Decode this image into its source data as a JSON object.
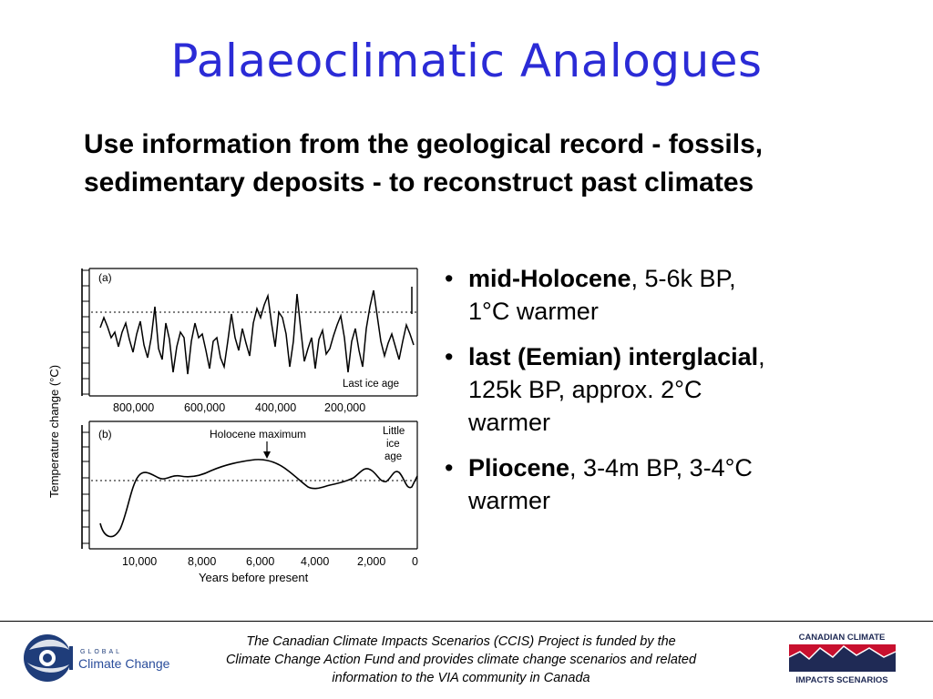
{
  "title": "Palaeoclimatic Analogues",
  "intro": "Use information from the geological record - fossils, sedimentary deposits - to reconstruct past climates",
  "figure": {
    "y_axis_label": "Temperature change (°C)",
    "x_axis_label": "Years before present",
    "panel_a": {
      "tag": "(a)",
      "annotation": "Last ice age",
      "x_ticks": [
        "800,000",
        "600,000",
        "400,000",
        "200,000"
      ]
    },
    "panel_b": {
      "tag": "(b)",
      "annotation_holocene": "Holocene maximum",
      "annotation_little_1": "Little",
      "annotation_little_2": "ice",
      "annotation_little_3": "age",
      "x_ticks": [
        "10,000",
        "8,000",
        "6,000",
        "4,000",
        "2,000",
        "0"
      ]
    }
  },
  "bullets": [
    {
      "bold": "mid-Holocene",
      "rest_1": ", 5-6k BP,",
      "rest_2": "1°C warmer"
    },
    {
      "bold": "last (Eemian) interglacial",
      "rest_1": ",",
      "rest_2": "125k BP, approx. 2°C",
      "rest_3": "warmer"
    },
    {
      "bold": "Pliocene",
      "rest_1": ", 3-4m BP, 3-4°C",
      "rest_2": "warmer"
    }
  ],
  "footer": {
    "line1": "The Canadian Climate Impacts Scenarios (CCIS) Project is funded by the",
    "line2": "Climate Change Action Fund and provides climate change scenarios and related",
    "line3": "information to the VIA community in Canada"
  },
  "logo_left": {
    "small_text": "GLOBAL",
    "main_text": "Climate Change"
  },
  "logo_right": {
    "line1": "CANADIAN CLIMATE",
    "line2": "IMPACTS SCENARIOS"
  },
  "colors": {
    "title": "#2b2bd6",
    "logo_red": "#c8102e",
    "logo_navy": "#1f2a55",
    "logo_blue": "#2a4d9b"
  }
}
